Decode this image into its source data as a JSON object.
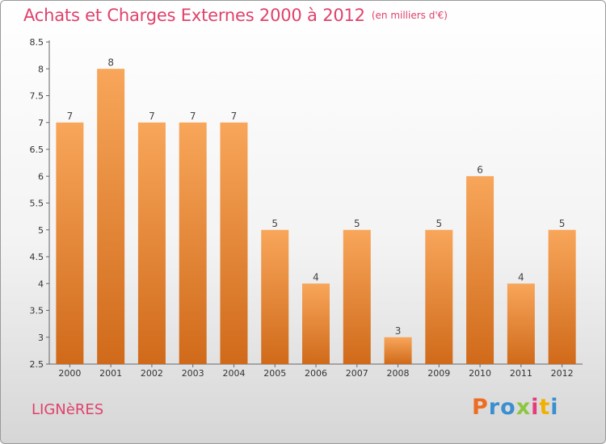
{
  "header": {
    "title": "Achats et Charges Externes 2000 à 2012",
    "unit": "(en milliers d'€)"
  },
  "footer": {
    "commune": "LIGNèRES",
    "logo": "Proxiti",
    "logo_colors": [
      "#ee6c21",
      "#3a8fd0",
      "#3a8fd0",
      "#8dc63f",
      "#e63b7a",
      "#f2b000",
      "#3a8fd0"
    ]
  },
  "colors": {
    "title": "#e0416b",
    "bar_top": "#f8a65a",
    "bar_bottom": "#d06a1a"
  },
  "chart_data": {
    "type": "bar",
    "title": "Achats et Charges Externes 2000 à 2012",
    "subtitle": "(en milliers d'€)",
    "categories": [
      "2000",
      "2001",
      "2002",
      "2003",
      "2004",
      "2005",
      "2006",
      "2007",
      "2008",
      "2009",
      "2010",
      "2011",
      "2012"
    ],
    "values": [
      7,
      8,
      7,
      7,
      7,
      5,
      4,
      5,
      3,
      5,
      6,
      4,
      5
    ],
    "data_labels": [
      "7",
      "8",
      "7",
      "7",
      "7",
      "5",
      "4",
      "5",
      "3",
      "5",
      "6",
      "4",
      "5"
    ],
    "ylim": [
      2.5,
      8.5
    ],
    "yticks": [
      2.5,
      3,
      3.5,
      4,
      4.5,
      5,
      5.5,
      6,
      6.5,
      7,
      7.5,
      8,
      8.5
    ],
    "ytick_labels": [
      "2.5",
      "3",
      "3.5",
      "4",
      "4.5",
      "5",
      "5.5",
      "6",
      "6.5",
      "7",
      "7.5",
      "8",
      "8.5"
    ],
    "grid": false
  }
}
